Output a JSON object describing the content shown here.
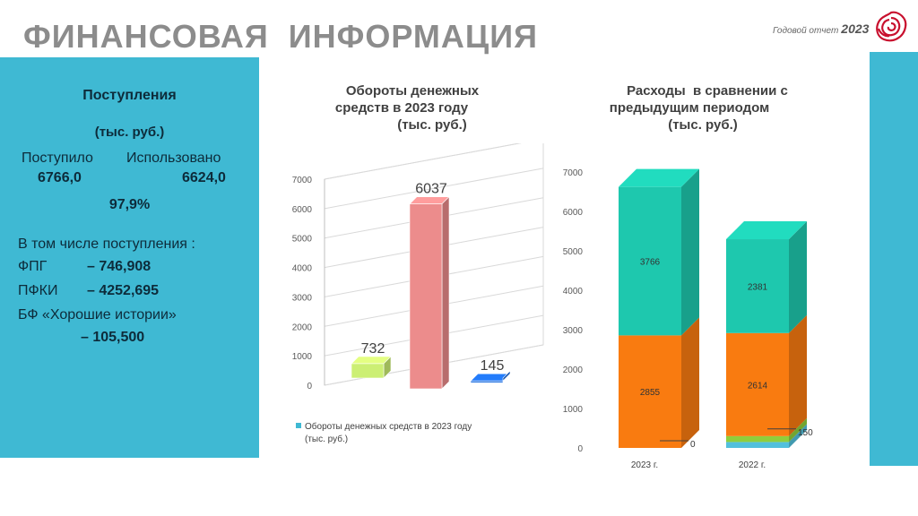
{
  "page": {
    "title": "ФИНАНСОВАЯ  ИНФОРМАЦИЯ",
    "report_label": "Годовой отчет",
    "report_year": "2023"
  },
  "panel": {
    "title": "Поступления",
    "unit": "(тыс. руб.)",
    "received_label": "Поступило",
    "received_value": "6766,0",
    "used_label": "Использовано",
    "used_value": "6624,0",
    "percent": "97,9%",
    "including_label": "В том числе поступления :",
    "items": [
      {
        "name": "ФПГ",
        "value": "– 746,908"
      },
      {
        "name": "ПФКИ",
        "value": "– 4252,695"
      },
      {
        "name": "БФ «Хорошие истории»",
        "value": "– 105,500"
      }
    ]
  },
  "chart_data": [
    {
      "type": "bar",
      "title": "Обороты денежных средств в 2023 году (тыс. руб.)",
      "title_lines": [
        "Обороты денежных",
        "средств в 2023 году",
        "(тыс. руб.)"
      ],
      "categories": [
        "",
        "",
        ""
      ],
      "values": [
        732,
        6037,
        145
      ],
      "value_labels": [
        "732",
        "6037",
        "145"
      ],
      "bar_colors": [
        "#ccef74",
        "#ec8c8c",
        "#1f6fe0"
      ],
      "yticks": [
        "0",
        "1000",
        "2000",
        "3000",
        "4000",
        "5000",
        "6000",
        "7000"
      ],
      "ylim": [
        0,
        7000
      ],
      "legend": [
        "Обороты денежных средств в 2023 году",
        "(тыс. руб.)"
      ],
      "legend_position": "bottom",
      "three_d": true
    },
    {
      "type": "bar",
      "stacked": true,
      "title": "Расходы  в сравнении с предыдущим периодом (тыс. руб.)",
      "title_lines": [
        "Расходы  в сравнении с",
        "предыдущим периодом",
        "(тыс. руб.)"
      ],
      "categories": [
        "2023 г.",
        "2022 г."
      ],
      "series": [
        {
          "color": "#52c0dc",
          "values": [
            0,
            150
          ]
        },
        {
          "color": "#8fce3c",
          "values": [
            0,
            150
          ]
        },
        {
          "color": "#f97b10",
          "values": [
            2855,
            2614
          ]
        },
        {
          "color": "#1ec8ae",
          "values": [
            3766,
            2381
          ]
        }
      ],
      "segment_labels": [
        [
          "2855",
          "3766"
        ],
        [
          "2614",
          "2381"
        ]
      ],
      "outside_labels": [
        "0",
        "150"
      ],
      "yticks": [
        "0",
        "1000",
        "2000",
        "3000",
        "4000",
        "5000",
        "6000",
        "7000"
      ],
      "ylim": [
        0,
        7000
      ],
      "three_d": true
    }
  ]
}
